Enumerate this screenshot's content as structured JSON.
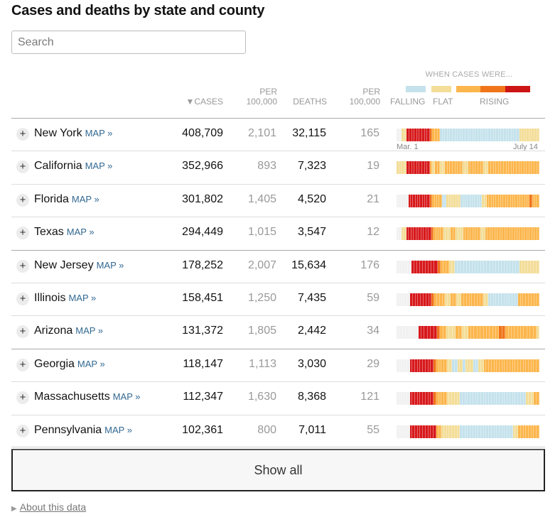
{
  "title": "Cases and deaths by state and county",
  "search": {
    "placeholder": "Search"
  },
  "headers": {
    "cases": "▼CASES",
    "per1": "PER\n100,000",
    "deaths": "DEATHS",
    "per2": "PER\n100,000"
  },
  "legend": {
    "title": "WHEN CASES WERE...",
    "falling": "FALLING",
    "flat": "FLAT",
    "rising": "RISING",
    "colors": {
      "none": "#f1f1f1",
      "falling": "#c5e2ec",
      "flat": "#f3dd98",
      "rising1": "#fcb64c",
      "rising2": "#f0741a",
      "rising3": "#d7191c",
      "rising4": "#bd0a0a"
    }
  },
  "axis": {
    "start": "Mar. 1",
    "end": "July 14"
  },
  "rows": [
    {
      "state": "New York",
      "map": "MAP »",
      "cases": "408,709",
      "per1": "2,101",
      "deaths": "32,115",
      "per2": "165",
      "trend": "n:2,f:2,r:9,o:1,y:3,b:31,w:8"
    },
    {
      "state": "California",
      "map": "MAP »",
      "cases": "352,966",
      "per1": "893",
      "deaths": "7,323",
      "per2": "19",
      "trend": "w:4,r:9,y:1,f:1,y:2,w:2,y:7,w:2,y:6,w:2,y:20"
    },
    {
      "state": "Florida",
      "map": "MAP »",
      "cases": "301,802",
      "per1": "1,405",
      "deaths": "4,520",
      "per2": "21",
      "trend": "n:5,r:9,o:1,y:4,b:2,w:6,b:9,w:2,y:18,o:1,y:3"
    },
    {
      "state": "Texas",
      "map": "MAP »",
      "cases": "294,449",
      "per1": "1,015",
      "deaths": "3,547",
      "per2": "12",
      "trend": "n:2,f:2,r:10,o:1,y:4,w:3,y:2,w:3,y:7,w:2,y:22"
    },
    {
      "state": "New Jersey",
      "map": "MAP »",
      "cases": "178,252",
      "per1": "2,007",
      "deaths": "15,634",
      "per2": "176",
      "trend": "n:5,r:9,o:1,y:3,w:2,b:22,w:7"
    },
    {
      "state": "Illinois",
      "map": "MAP »",
      "cases": "158,451",
      "per1": "1,250",
      "deaths": "7,435",
      "per2": "59",
      "trend": "n:5,r:8,o:1,y:4,w:2,y:2,w:2,y:8,w:2,b:11,y:8"
    },
    {
      "state": "Arizona",
      "map": "MAP »",
      "cases": "131,372",
      "per1": "1,805",
      "deaths": "2,442",
      "per2": "34",
      "trend": "n:7,r:6,o:1,y:2,w:3,y:2,w:2,y:10,o:2,y:10,w:1"
    },
    {
      "state": "Georgia",
      "map": "MAP »",
      "cases": "118,147",
      "per1": "1,113",
      "deaths": "3,030",
      "per2": "29",
      "trend": "n:5,r:9,o:1,y:4,w:2,b:2,w:2,b:1,w:3,b:2,w:2,y:21"
    },
    {
      "state": "Massachusetts",
      "map": "MAP »",
      "cases": "112,347",
      "per1": "1,630",
      "deaths": "8,368",
      "per2": "121",
      "trend": "n:5,r:9,o:1,y:4,w:5,b:25,w:3,y:2"
    },
    {
      "state": "Pennsylvania",
      "map": "MAP »",
      "cases": "102,361",
      "per1": "800",
      "deaths": "7,011",
      "per2": "55",
      "trend": "n:5,r:10,y:2,w:7,b:20,w:2,y:8"
    }
  ],
  "show_all": "Show all",
  "about": "About this data"
}
